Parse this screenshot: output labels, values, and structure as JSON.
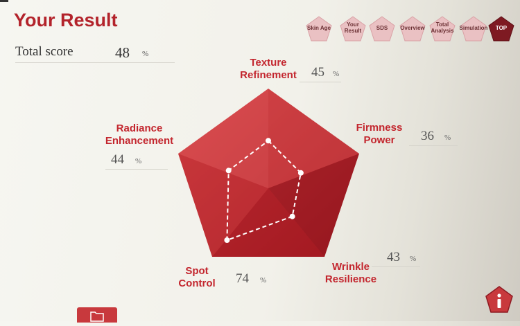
{
  "header": {
    "title": "Your Result"
  },
  "total": {
    "label": "Total score",
    "value": "48",
    "unit": "%"
  },
  "nav": [
    {
      "label": "Skin Age",
      "active": false
    },
    {
      "label": "Your\nResult",
      "active": false
    },
    {
      "label": "SDS",
      "active": false
    },
    {
      "label": "Overview",
      "active": false
    },
    {
      "label": "Total\nAnalysis",
      "active": false
    },
    {
      "label": "Simulation",
      "active": false
    },
    {
      "label": "TOP",
      "active": true
    }
  ],
  "chart_data": {
    "type": "radar",
    "axes": [
      {
        "label": "Texture\nRefinement",
        "value": 45,
        "unit": "%"
      },
      {
        "label": "Firmness\nPower",
        "value": 36,
        "unit": "%"
      },
      {
        "label": "Wrinkle\nResilience",
        "value": 43,
        "unit": "%"
      },
      {
        "label": "Spot\nControl",
        "value": 74,
        "unit": "%"
      },
      {
        "label": "Radiance\nEnhancement",
        "value": 44,
        "unit": "%"
      }
    ],
    "range": [
      0,
      100
    ]
  },
  "icons": {
    "folder": "folder-icon",
    "info": "info-icon"
  },
  "colors": {
    "accent": "#b3232b",
    "pentagon": "#c0242c",
    "dark": "#8e1a22"
  }
}
